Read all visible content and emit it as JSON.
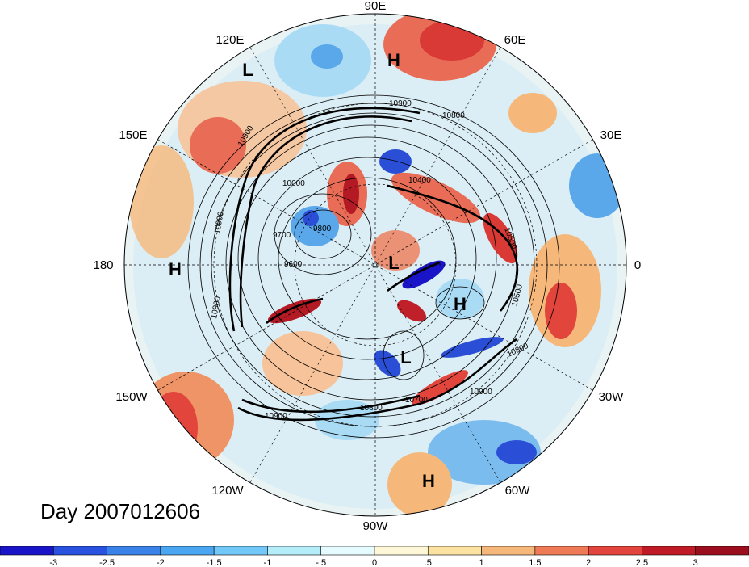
{
  "title": "Day 2007012606",
  "longitude_labels": [
    "90E",
    "60E",
    "30E",
    "0",
    "30W",
    "60W",
    "90W",
    "120W",
    "150W",
    "180",
    "150E",
    "120E"
  ],
  "pressure_centers": [
    "L",
    "H",
    "L",
    "H",
    "H",
    "L",
    "H"
  ],
  "contour_labels": [
    "10900",
    "10800",
    "10400",
    "9800",
    "9700",
    "9600",
    "10000",
    "10900",
    "10900",
    "10500",
    "10800",
    "10900",
    "10900",
    "10600",
    "10700",
    "10800",
    "10900"
  ],
  "colorbar": {
    "ticks": [
      "-3",
      "-2.5",
      "-2",
      "-1.5",
      "-1",
      "-.5",
      "0",
      ".5",
      "1",
      "1.5",
      "2",
      "2.5",
      "3"
    ],
    "colors": [
      "#1a14c8",
      "#2a52e0",
      "#3b82e8",
      "#4aa6f0",
      "#72c8f8",
      "#b4ecfa",
      "#e6fbff",
      "#fdf7d8",
      "#fbe2a0",
      "#f6b87a",
      "#ef7a56",
      "#e2453c",
      "#c01a26",
      "#9a0e1e"
    ]
  },
  "field_colors": {
    "neutral": "#f2f4ec",
    "light_blue": "#a9dbf5",
    "blue": "#5aa8ea",
    "dark_blue": "#2a4fd6",
    "light_red": "#f6c39a",
    "red": "#e86c56",
    "dark_red": "#c0202a"
  }
}
